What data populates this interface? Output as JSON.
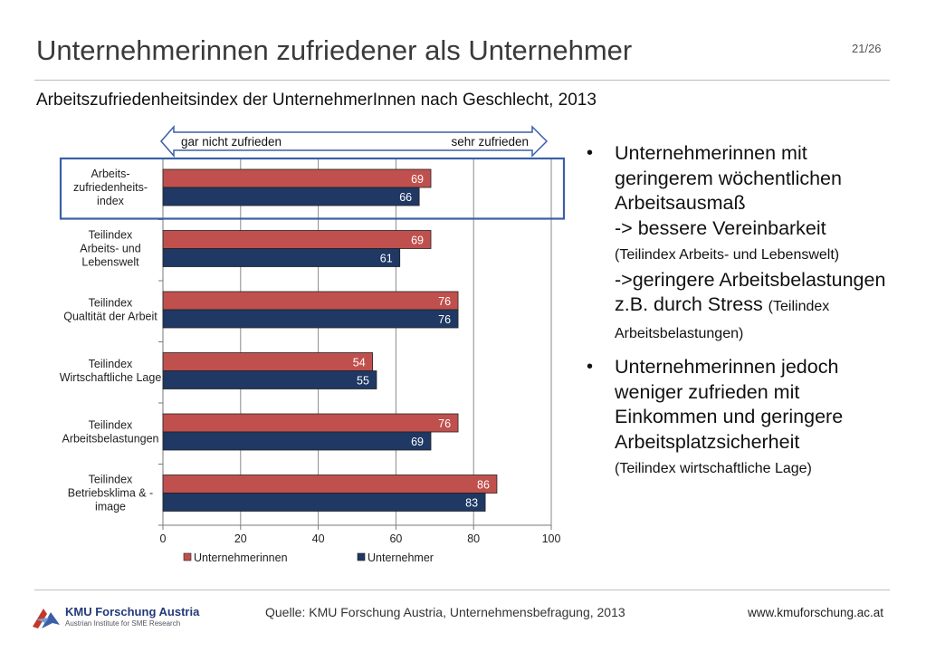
{
  "header": {
    "title": "Unternehmerinnen zufriedener als Unternehmer",
    "page_number": "21/26",
    "subtitle": "Arbeitszufriedenheitsindex der UnternehmerInnen nach Geschlecht, 2013"
  },
  "chart_data": {
    "type": "bar",
    "orientation": "horizontal",
    "categories": [
      [
        "Arbeits-",
        "zufriedenheits-",
        "index"
      ],
      [
        "Teilindex",
        "Arbeits- und",
        "Lebenswelt"
      ],
      [
        "Teilindex",
        "Qualtität der Arbeit"
      ],
      [
        "Teilindex",
        "Wirtschaftliche Lage"
      ],
      [
        "Teilindex",
        "Arbeitsbelastungen"
      ],
      [
        "Teilindex",
        "Betriebsklima & -",
        "image"
      ]
    ],
    "series": [
      {
        "name": "Unternehmerinnen",
        "color": "#c0504d",
        "values": [
          69,
          69,
          76,
          54,
          76,
          86
        ]
      },
      {
        "name": "Unternehmer",
        "color": "#1f3864",
        "values": [
          66,
          61,
          76,
          55,
          69,
          83
        ]
      }
    ],
    "xlim": [
      0,
      100
    ],
    "x_ticks": [
      0,
      20,
      40,
      60,
      80,
      100
    ],
    "grid": "vertical",
    "legend": "bottom",
    "scale_arrow": {
      "left_label": "gar nicht zufrieden",
      "right_label": "sehr zufrieden"
    },
    "highlight_category": 0,
    "highlight_color": "#3a5fa6"
  },
  "bullets": [
    {
      "runs": [
        {
          "text": "Unternehmerinnen mit geringerem wöchentlichen Arbeitsausmaß",
          "size": "large",
          "br": true
        },
        {
          "text": "-> bessere Vereinbarkeit",
          "size": "large",
          "br": true
        },
        {
          "text": "(Teilindex Arbeits- und Lebenswelt)",
          "size": "small",
          "br": true
        },
        {
          "text": "->geringere Arbeitsbelastungen z.B. durch Stress ",
          "size": "large",
          "br": false
        },
        {
          "text": "(Teilindex Arbeitsbelastungen)",
          "size": "small",
          "br": false
        }
      ]
    },
    {
      "runs": [
        {
          "text": "Unternehmerinnen jedoch weniger zufrieden mit Einkommen und geringere Arbeitsplatzsicherheit",
          "size": "large",
          "br": true
        },
        {
          "text": "(Teilindex wirtschaftliche Lage)",
          "size": "small",
          "br": false
        }
      ]
    }
  ],
  "footer": {
    "logo_name": "KMU Forschung Austria",
    "logo_subtitle": "Austrian Institute for SME Research",
    "source": "Quelle: KMU Forschung Austria, Unternehmensbefragung, 2013",
    "url": "www.kmuforschung.ac.at"
  }
}
